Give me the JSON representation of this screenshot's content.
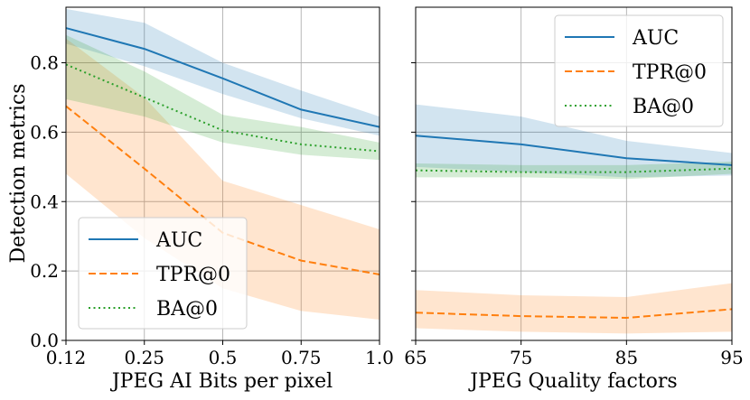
{
  "chart_data": [
    {
      "type": "line",
      "panel": "left",
      "xlabel": "JPEG AI Bits per pixel",
      "ylabel": "Detection metrics",
      "categories": [
        "0.12",
        "0.25",
        "0.5",
        "0.75",
        "1.0"
      ],
      "ylim": [
        0,
        0.96
      ],
      "yticks": [
        "0.0",
        "0.2",
        "0.4",
        "0.6",
        "0.8"
      ],
      "ytick_values": [
        0,
        0.2,
        0.4,
        0.6,
        0.8
      ],
      "grid": true,
      "legend_position": "lower-left",
      "series": [
        {
          "name": "AUC",
          "style": "solid",
          "color": "#1f77b4",
          "values": [
            0.9,
            0.84,
            0.755,
            0.665,
            0.615
          ],
          "lower": [
            0.855,
            0.79,
            0.71,
            0.64,
            0.59
          ],
          "upper": [
            0.955,
            0.915,
            0.8,
            0.72,
            0.645
          ]
        },
        {
          "name": "TPR@0",
          "style": "dashed",
          "color": "#ff7f0e",
          "values": [
            0.675,
            0.495,
            0.31,
            0.23,
            0.19
          ],
          "lower": [
            0.48,
            0.295,
            0.15,
            0.085,
            0.06
          ],
          "upper": [
            0.87,
            0.7,
            0.46,
            0.39,
            0.32
          ]
        },
        {
          "name": "BA@0",
          "style": "dotted",
          "color": "#2ca02c",
          "values": [
            0.795,
            0.7,
            0.605,
            0.565,
            0.545
          ],
          "lower": [
            0.695,
            0.645,
            0.57,
            0.535,
            0.52
          ],
          "upper": [
            0.88,
            0.775,
            0.65,
            0.615,
            0.57
          ]
        }
      ]
    },
    {
      "type": "line",
      "panel": "right",
      "xlabel": "JPEG Quality factors",
      "categories": [
        "65",
        "75",
        "85",
        "95"
      ],
      "ylim": [
        0,
        0.96
      ],
      "grid": true,
      "legend_position": "upper-right",
      "series": [
        {
          "name": "AUC",
          "style": "solid",
          "color": "#1f77b4",
          "values": [
            0.59,
            0.565,
            0.525,
            0.505
          ],
          "lower": [
            0.5,
            0.485,
            0.47,
            0.475
          ],
          "upper": [
            0.68,
            0.645,
            0.575,
            0.54
          ]
        },
        {
          "name": "TPR@0",
          "style": "dashed",
          "color": "#ff7f0e",
          "values": [
            0.08,
            0.07,
            0.065,
            0.09
          ],
          "lower": [
            0.035,
            0.025,
            0.02,
            0.025
          ],
          "upper": [
            0.145,
            0.13,
            0.125,
            0.165
          ]
        },
        {
          "name": "BA@0",
          "style": "dotted",
          "color": "#2ca02c",
          "values": [
            0.49,
            0.485,
            0.485,
            0.495
          ],
          "lower": [
            0.47,
            0.47,
            0.465,
            0.48
          ],
          "upper": [
            0.51,
            0.505,
            0.505,
            0.515
          ]
        }
      ]
    }
  ]
}
